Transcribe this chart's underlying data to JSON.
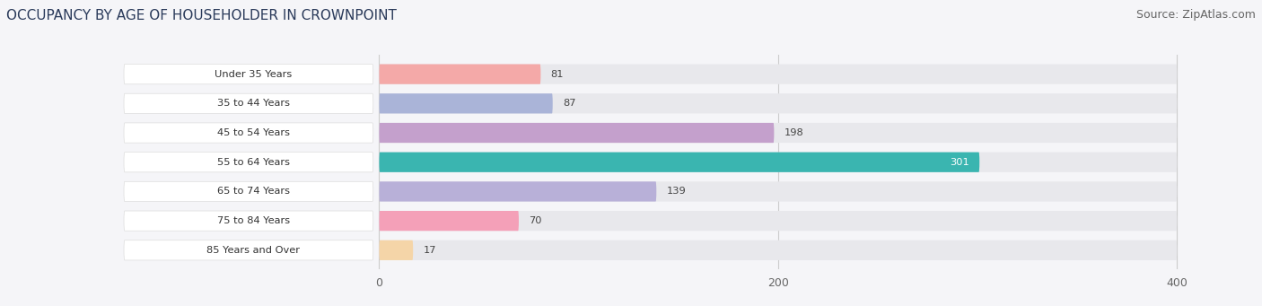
{
  "categories": [
    "Under 35 Years",
    "35 to 44 Years",
    "45 to 54 Years",
    "55 to 64 Years",
    "65 to 74 Years",
    "75 to 84 Years",
    "85 Years and Over"
  ],
  "values": [
    81,
    87,
    198,
    301,
    139,
    70,
    17
  ],
  "bar_colors": [
    "#f4a9a8",
    "#aab4d8",
    "#c4a0cc",
    "#3ab5b0",
    "#b8b0d8",
    "#f4a0b8",
    "#f5d5a8"
  ],
  "title": "OCCUPANCY BY AGE OF HOUSEHOLDER IN CROWNPOINT",
  "source": "Source: ZipAtlas.com",
  "x_max": 400,
  "x_label_offset": 130,
  "xticks": [
    0,
    200,
    400
  ],
  "title_fontsize": 11,
  "source_fontsize": 9,
  "bar_height": 0.68,
  "row_bg_color": "#f2f2f5",
  "bar_bg_color": "#e8e8ec",
  "label_bg_color": "#ffffff",
  "label_color_default": "#444444",
  "label_color_teal": "#ffffff",
  "grid_color": "#cccccc",
  "tick_color": "#666666",
  "bg_color": "#f5f5f8"
}
